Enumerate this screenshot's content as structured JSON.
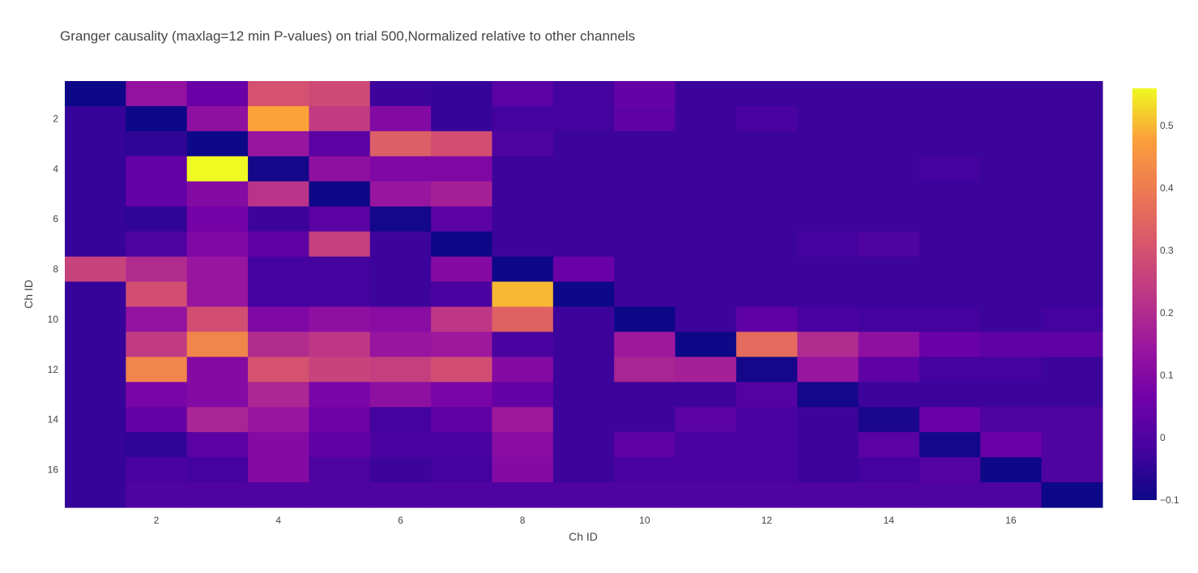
{
  "chart_data": {
    "type": "heatmap",
    "title": "Granger causality (maxlag=12 min P-values) on trial 500,Normalized relative to other channels",
    "xlabel": "Ch ID",
    "ylabel": "Ch ID",
    "x": [
      1,
      2,
      3,
      4,
      5,
      6,
      7,
      8,
      9,
      10,
      11,
      12,
      13,
      14,
      15,
      16,
      17
    ],
    "y": [
      1,
      2,
      3,
      4,
      5,
      6,
      7,
      8,
      9,
      10,
      11,
      12,
      13,
      14,
      15,
      16,
      17
    ],
    "x_tick_labels": [
      "2",
      "4",
      "6",
      "8",
      "10",
      "12",
      "14",
      "16"
    ],
    "y_tick_labels": [
      "2",
      "4",
      "6",
      "8",
      "10",
      "12",
      "14",
      "16"
    ],
    "y_reversed": true,
    "colorscale": "plasma",
    "colorbar": {
      "min": -0.1,
      "max": 0.56,
      "tick_labels": [
        "−0.1",
        "0",
        "0.1",
        "0.2",
        "0.3",
        "0.4",
        "0.5"
      ],
      "tick_values": [
        -0.1,
        0,
        0.1,
        0.2,
        0.3,
        0.4,
        0.5
      ]
    },
    "z": [
      [
        -0.1,
        0.13,
        0.05,
        0.3,
        0.28,
        -0.03,
        -0.04,
        0.02,
        -0.02,
        0.04,
        -0.03,
        -0.03,
        -0.03,
        -0.03,
        -0.03,
        -0.03,
        -0.03
      ],
      [
        -0.04,
        -0.1,
        0.12,
        0.48,
        0.24,
        0.1,
        -0.04,
        -0.02,
        -0.02,
        0.03,
        -0.03,
        -0.01,
        -0.03,
        -0.03,
        -0.03,
        -0.03,
        -0.03
      ],
      [
        -0.04,
        -0.05,
        -0.1,
        0.14,
        0.02,
        0.33,
        0.29,
        0.0,
        -0.03,
        -0.03,
        -0.03,
        -0.03,
        -0.03,
        -0.03,
        -0.03,
        -0.03,
        -0.03
      ],
      [
        -0.04,
        0.04,
        0.56,
        -0.09,
        0.12,
        0.09,
        0.09,
        -0.03,
        -0.03,
        -0.03,
        -0.03,
        -0.03,
        -0.03,
        -0.03,
        -0.02,
        -0.03,
        -0.03
      ],
      [
        -0.04,
        0.04,
        0.1,
        0.22,
        -0.1,
        0.14,
        0.17,
        -0.03,
        -0.03,
        -0.03,
        -0.03,
        -0.03,
        -0.03,
        -0.03,
        -0.03,
        -0.03,
        -0.03
      ],
      [
        -0.04,
        -0.05,
        0.07,
        -0.03,
        0.02,
        -0.09,
        0.02,
        -0.03,
        -0.03,
        -0.03,
        -0.03,
        -0.03,
        -0.03,
        -0.03,
        -0.03,
        -0.03,
        -0.03
      ],
      [
        -0.04,
        0.0,
        0.09,
        0.03,
        0.25,
        -0.03,
        -0.1,
        -0.03,
        -0.03,
        -0.03,
        -0.03,
        -0.03,
        -0.02,
        0.0,
        -0.03,
        -0.03,
        -0.03
      ],
      [
        0.26,
        0.2,
        0.14,
        -0.02,
        -0.02,
        -0.03,
        0.1,
        -0.1,
        0.05,
        -0.03,
        -0.03,
        -0.03,
        -0.03,
        -0.03,
        -0.03,
        -0.03,
        -0.03
      ],
      [
        -0.04,
        0.29,
        0.14,
        -0.02,
        -0.02,
        -0.03,
        -0.01,
        0.5,
        -0.1,
        -0.03,
        -0.03,
        -0.03,
        -0.03,
        -0.03,
        -0.03,
        -0.03,
        -0.03
      ],
      [
        -0.04,
        0.13,
        0.29,
        0.09,
        0.12,
        0.11,
        0.23,
        0.34,
        -0.03,
        -0.1,
        -0.03,
        0.03,
        -0.01,
        -0.02,
        -0.02,
        -0.03,
        -0.02
      ],
      [
        -0.04,
        0.24,
        0.42,
        0.2,
        0.23,
        0.14,
        0.15,
        -0.01,
        -0.03,
        0.15,
        -0.1,
        0.36,
        0.2,
        0.12,
        0.05,
        0.03,
        0.03
      ],
      [
        -0.04,
        0.42,
        0.1,
        0.3,
        0.26,
        0.25,
        0.29,
        0.1,
        -0.03,
        0.18,
        0.17,
        -0.09,
        0.14,
        0.03,
        -0.02,
        -0.02,
        -0.03
      ],
      [
        -0.04,
        0.08,
        0.1,
        0.19,
        0.08,
        0.12,
        0.08,
        0.04,
        -0.03,
        -0.03,
        -0.03,
        0.01,
        -0.09,
        -0.03,
        -0.03,
        -0.03,
        -0.03
      ],
      [
        -0.04,
        0.04,
        0.18,
        0.14,
        0.06,
        -0.02,
        0.03,
        0.15,
        -0.03,
        -0.03,
        0.02,
        -0.01,
        -0.03,
        -0.08,
        0.05,
        0.0,
        0.0
      ],
      [
        -0.04,
        -0.05,
        0.02,
        0.1,
        0.03,
        -0.01,
        -0.01,
        0.11,
        -0.03,
        0.03,
        -0.01,
        -0.01,
        -0.03,
        0.02,
        -0.09,
        0.05,
        0.0
      ],
      [
        -0.04,
        -0.01,
        -0.02,
        0.1,
        0.0,
        -0.03,
        -0.02,
        0.1,
        -0.03,
        -0.01,
        -0.01,
        -0.01,
        -0.03,
        -0.02,
        0.01,
        -0.1,
        0.0
      ],
      [
        -0.04,
        0.0,
        0.0,
        0.0,
        0.0,
        0.0,
        0.0,
        0.0,
        0.0,
        0.0,
        0.0,
        0.0,
        0.0,
        0.0,
        0.0,
        0.0,
        -0.1
      ]
    ]
  }
}
